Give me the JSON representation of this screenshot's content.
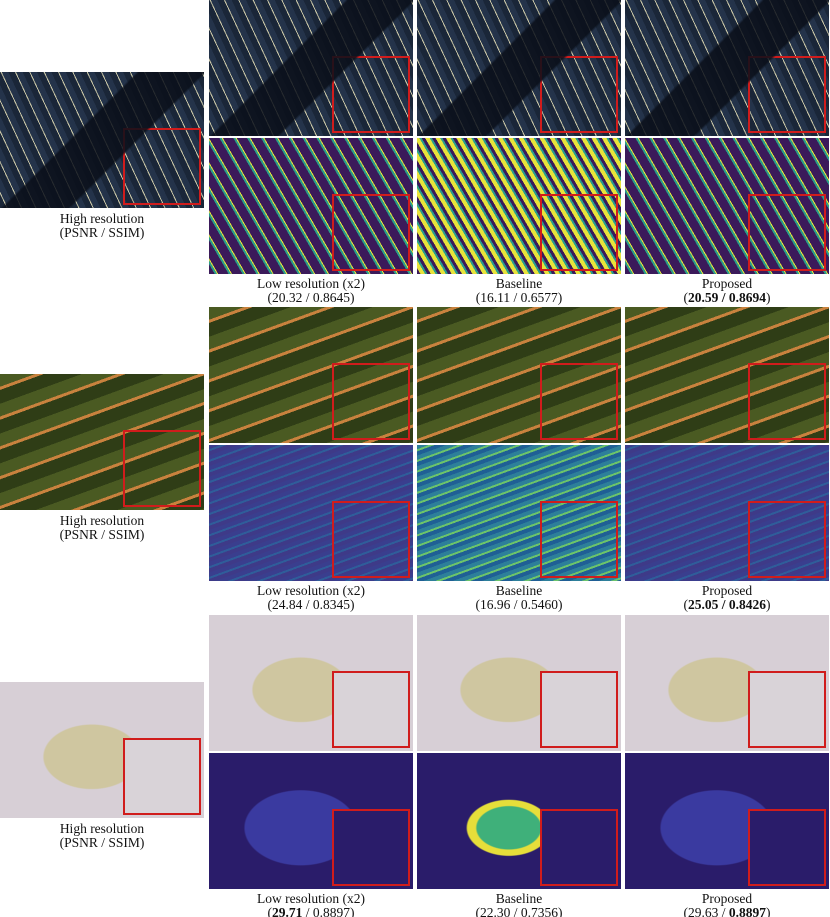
{
  "figure": {
    "rows": [
      {
        "reference": {
          "title": "High resolution",
          "subtitle": "(PSNR / SSIM)"
        },
        "methods": [
          {
            "title": "Low resolution (x2)",
            "metrics": [
              {
                "text": "(20.32 / 0.8645)"
              }
            ]
          },
          {
            "title": "Baseline",
            "metrics": [
              {
                "text": "(16.11 / 0.6577)"
              }
            ]
          },
          {
            "title": "Proposed",
            "metrics": [
              {
                "text": "("
              },
              {
                "text": "20.59 / 0.8694",
                "bold": true
              },
              {
                "text": ")"
              }
            ]
          }
        ]
      },
      {
        "reference": {
          "title": "High resolution",
          "subtitle": "(PSNR / SSIM)"
        },
        "methods": [
          {
            "title": "Low resolution (x2)",
            "metrics": [
              {
                "text": "(24.84 / 0.8345)"
              }
            ]
          },
          {
            "title": "Baseline",
            "metrics": [
              {
                "text": "(16.96 / 0.5460)"
              }
            ]
          },
          {
            "title": "Proposed",
            "metrics": [
              {
                "text": "("
              },
              {
                "text": "25.05 / 0.8426",
                "bold": true
              },
              {
                "text": ")"
              }
            ]
          }
        ]
      },
      {
        "reference": {
          "title": "High resolution",
          "subtitle": "(PSNR / SSIM)"
        },
        "methods": [
          {
            "title": "Low resolution (x2)",
            "metrics": [
              {
                "text": "("
              },
              {
                "text": "29.71",
                "bold": true
              },
              {
                "text": " / 0.8897)"
              }
            ]
          },
          {
            "title": "Baseline",
            "metrics": [
              {
                "text": "(22.30 / 0.7356)"
              }
            ]
          },
          {
            "title": "Proposed",
            "metrics": [
              {
                "text": "(29.63 / "
              },
              {
                "text": "0.8897",
                "bold": true
              },
              {
                "text": ")"
              }
            ]
          }
        ]
      }
    ]
  }
}
